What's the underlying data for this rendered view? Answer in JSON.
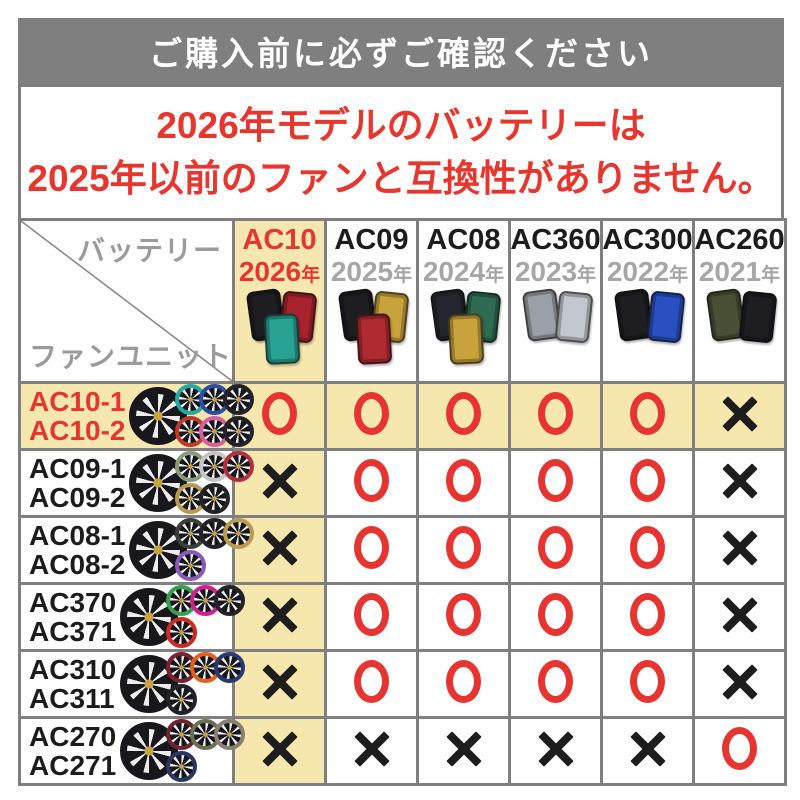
{
  "banner": {
    "text": "ご購入前に必ずご確認ください"
  },
  "notice": {
    "line1": "2026年モデルのバッテリーは",
    "line2": "2025年以前のファンと互換性がありません。"
  },
  "table": {
    "corner": {
      "top_right": "バッテリー",
      "bottom_left": "ファンユニット"
    },
    "columns": [
      {
        "model": "AC10",
        "year": "2026",
        "year_suffix": "年",
        "highlight": true,
        "battery_colors": [
          "#1e1e22",
          "#a8232e",
          "#28a393"
        ]
      },
      {
        "model": "AC09",
        "year": "2025",
        "year_suffix": "年",
        "highlight": false,
        "battery_colors": [
          "#1e1e22",
          "#c8a23a",
          "#b02a32"
        ]
      },
      {
        "model": "AC08",
        "year": "2024",
        "year_suffix": "年",
        "highlight": false,
        "battery_colors": [
          "#23262e",
          "#2e6b50",
          "#c8a23a"
        ]
      },
      {
        "model": "AC360",
        "year": "2023",
        "year_suffix": "年",
        "highlight": false,
        "battery_colors": [
          "#9aa0a6",
          "#c2c8ce"
        ]
      },
      {
        "model": "AC300",
        "year": "2022",
        "year_suffix": "年",
        "highlight": false,
        "battery_colors": [
          "#1e1e22",
          "#2a4fc0"
        ]
      },
      {
        "model": "AC260",
        "year": "2021",
        "year_suffix": "年",
        "highlight": false,
        "battery_colors": [
          "#4a5036",
          "#1e1e22"
        ]
      }
    ],
    "rows": [
      {
        "models": [
          "AC10-1",
          "AC10-2"
        ],
        "highlight": true,
        "fan_colors": [
          "#28a8a0",
          "#2b4fa0",
          "#222228",
          "#c0392b",
          "#d85f9e",
          "#222228"
        ],
        "cells": [
          "o",
          "o",
          "o",
          "o",
          "o",
          "x"
        ]
      },
      {
        "models": [
          "AC09-1",
          "AC09-2"
        ],
        "highlight": false,
        "fan_colors": [
          "#8a9a7a",
          "#c4c4c4",
          "#b03040",
          "#b89a50",
          "#222228"
        ],
        "cells": [
          "x",
          "o",
          "o",
          "o",
          "o",
          "x"
        ]
      },
      {
        "models": [
          "AC08-1",
          "AC08-2"
        ],
        "highlight": false,
        "fan_colors": [
          "#3a3f3a",
          "#222228",
          "#b89a50",
          "#8a5ab8"
        ],
        "cells": [
          "x",
          "o",
          "o",
          "o",
          "o",
          "x"
        ]
      },
      {
        "models": [
          "AC370",
          "AC371"
        ],
        "highlight": false,
        "fan_colors": [
          "#35a050",
          "#d02090",
          "#222228",
          "#cc2a22"
        ],
        "cells": [
          "x",
          "o",
          "o",
          "o",
          "o",
          "x"
        ]
      },
      {
        "models": [
          "AC310",
          "AC311"
        ],
        "highlight": false,
        "fan_colors": [
          "#7a2330",
          "#e06020",
          "#2a3a70",
          "#222228"
        ],
        "cells": [
          "x",
          "o",
          "o",
          "o",
          "o",
          "x"
        ]
      },
      {
        "models": [
          "AC270",
          "AC271"
        ],
        "highlight": false,
        "fan_colors": [
          "#6a2530",
          "#6a7055",
          "#8a8070",
          "#2a3560"
        ],
        "cells": [
          "x",
          "x",
          "x",
          "x",
          "x",
          "o"
        ]
      }
    ],
    "legend": {
      "compatible_mark": "○",
      "incompatible_mark": "×"
    }
  },
  "colors": {
    "accent_red": "#e6362d",
    "circle_red": "#e63430",
    "x_black": "#1d1d1d",
    "highlight_yellow": "#f6e7ae",
    "banner_gray": "#7f7f7f",
    "border_gray": "#7f7f7f",
    "label_gray": "#9b9b9b",
    "year_gray": "#a6a6a6"
  }
}
